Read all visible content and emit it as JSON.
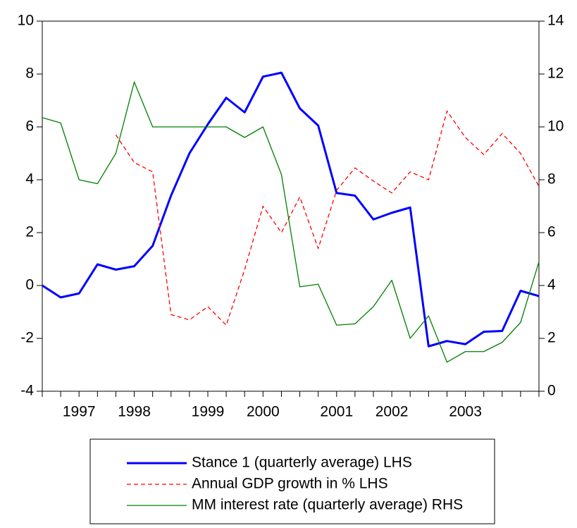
{
  "chart_data": {
    "type": "line",
    "categories": [
      null,
      null,
      "1997",
      null,
      null,
      "1998",
      null,
      null,
      null,
      "1999",
      null,
      null,
      "2000",
      null,
      null,
      null,
      "2001",
      null,
      null,
      "2002",
      null,
      null,
      null,
      "2003",
      null,
      null,
      null,
      null
    ],
    "series": [
      {
        "name": "Stance 1 (quarterly average) LHS",
        "color": "#0000ff",
        "width": 3,
        "dash": "solid",
        "values": [
          0.0,
          -0.45,
          -0.3,
          0.8,
          0.6,
          0.73,
          1.5,
          3.4,
          5.0,
          6.1,
          7.1,
          6.55,
          7.9,
          8.05,
          6.7,
          6.05,
          3.5,
          3.4,
          2.5,
          2.75,
          2.95,
          -2.3,
          -2.1,
          -2.22,
          -1.75,
          -1.72,
          -0.2,
          -0.4
        ]
      },
      {
        "name": "Annual GDP growth in % LHS",
        "color": "#ff0000",
        "width": 1.3,
        "dash": "dashed",
        "values": [
          null,
          null,
          null,
          null,
          5.7,
          4.65,
          4.3,
          -1.1,
          -1.3,
          -0.8,
          -1.5,
          0.6,
          3.0,
          2.0,
          3.35,
          1.4,
          3.6,
          4.45,
          3.95,
          3.5,
          4.3,
          4.0,
          6.6,
          5.6,
          4.95,
          5.75,
          5.0,
          3.75
        ]
      },
      {
        "name": "MM interest rate (quarterly average) RHS",
        "color": "#008000",
        "width": 1.3,
        "dash": "solid",
        "axis": "y2",
        "values": [
          10.35,
          10.15,
          8.0,
          7.85,
          9.0,
          11.7,
          10.0,
          10.0,
          10.0,
          10.0,
          10.0,
          9.6,
          10.0,
          8.2,
          3.95,
          4.05,
          2.5,
          2.55,
          3.2,
          4.2,
          2.0,
          2.85,
          1.1,
          1.5,
          1.5,
          1.85,
          2.6,
          4.9
        ]
      }
    ],
    "ylim": [
      -4,
      10
    ],
    "yticks": [
      -4,
      -2,
      0,
      2,
      4,
      6,
      8,
      10
    ],
    "y2lim": [
      0,
      14
    ],
    "y2ticks": [
      0,
      2,
      4,
      6,
      8,
      10,
      12,
      14
    ],
    "legend": "bottom"
  }
}
